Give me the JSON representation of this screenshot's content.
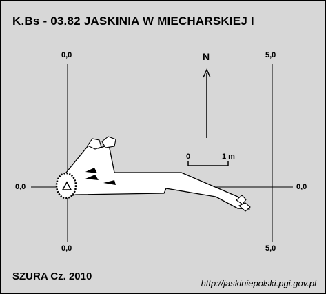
{
  "title": "K.Bs - 03.82  JASKINIA W MIECHARSKIEJ I",
  "author": "SZURA Cz. 2010",
  "source_url": "http://jaskiniepolski.pgi.gov.pl",
  "north_label": "N",
  "scale": {
    "start": "0",
    "end": "1 m"
  },
  "grid_labels": {
    "top_left": "0,0",
    "top_right": "5,0",
    "left": "0,0",
    "right": "0,0",
    "bottom_left": "0,0",
    "bottom_right": "5,0"
  },
  "colors": {
    "background": "#d7d7d7",
    "ink": "#000000",
    "cave_fill": "#ffffff"
  }
}
